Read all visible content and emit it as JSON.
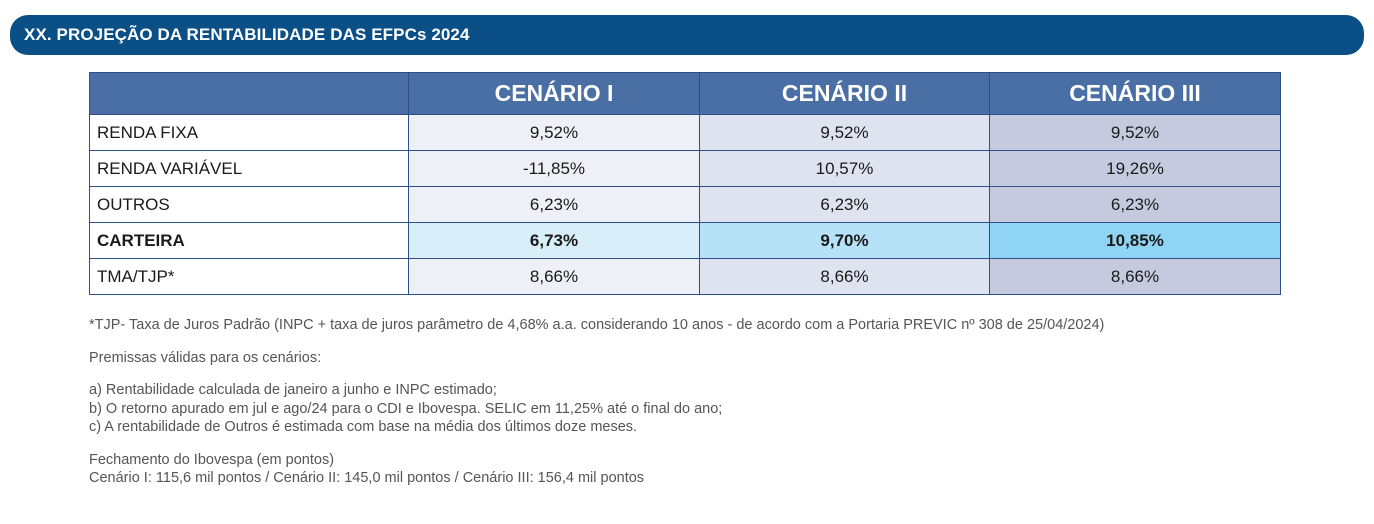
{
  "header": {
    "title": "XX. PROJEÇÃO DA RENTABILIDADE DAS EFPCs 2024"
  },
  "table": {
    "columns": [
      "CENÁRIO I",
      "CENÁRIO II",
      "CENÁRIO III"
    ],
    "rows": [
      {
        "label": "RENDA FIXA",
        "values": [
          "9,52%",
          "9,52%",
          "9,52%"
        ]
      },
      {
        "label": "RENDA VARIÁVEL",
        "values": [
          "-11,85%",
          "10,57%",
          "19,26%"
        ]
      },
      {
        "label": "OUTROS",
        "values": [
          "6,23%",
          "6,23%",
          "6,23%"
        ]
      },
      {
        "label": "CARTEIRA",
        "values": [
          "6,73%",
          "9,70%",
          "10,85%"
        ]
      },
      {
        "label": "TMA/TJP*",
        "values": [
          "8,66%",
          "8,66%",
          "8,66%"
        ]
      }
    ]
  },
  "notes": {
    "footnote": "*TJP- Taxa de Juros Padrão (INPC + taxa de juros parâmetro de 4,68% a.a. considerando 10 anos - de acordo com a Portaria PREVIC nº  308 de 25/04/2024)",
    "premises_title": "Premissas válidas para os cenários:",
    "premises": [
      "a) Rentabilidade calculada de janeiro a junho e INPC estimado;",
      "b) O retorno apurado em jul e ago/24 para o CDI e Ibovespa. SELIC em 11,25% até o final do ano;",
      "c) A rentabilidade de Outros é estimada com base na média dos últimos doze meses."
    ],
    "ibovespa_title": "Fechamento do Ibovespa (em pontos)",
    "ibovespa_values": "Cenário I: 115,6 mil pontos / Cenário II: 145,0 mil pontos / Cenário III: 156,4 mil pontos"
  }
}
